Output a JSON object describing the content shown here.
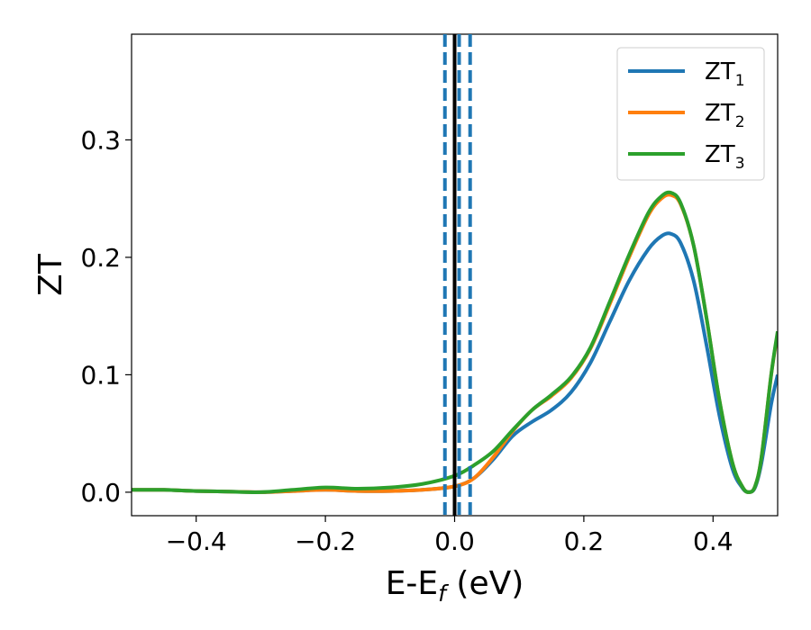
{
  "chart_data": {
    "type": "line",
    "xlabel": "E-E",
    "xlabel_sub": "f",
    "xlabel_unit": " (eV)",
    "ylabel": "ZT",
    "xlim": [
      -0.5,
      0.5
    ],
    "ylim": [
      -0.02,
      0.39
    ],
    "xticks": [
      -0.4,
      -0.2,
      0.0,
      0.2,
      0.4
    ],
    "xtick_labels": [
      "−0.4",
      "−0.2",
      "0.0",
      "0.2",
      "0.4"
    ],
    "yticks": [
      0.0,
      0.1,
      0.2,
      0.3
    ],
    "ytick_labels": [
      "0.0",
      "0.1",
      "0.2",
      "0.3"
    ],
    "grid": false,
    "legend_position": "top-right",
    "vertical_lines": [
      {
        "x": 0.0,
        "style": "solid",
        "color": "#000000"
      },
      {
        "x": -0.015,
        "style": "dashed",
        "color": "#1f77b4"
      },
      {
        "x": 0.007,
        "style": "dashed",
        "color": "#1f77b4"
      },
      {
        "x": 0.024,
        "style": "dashed",
        "color": "#1f77b4"
      }
    ],
    "series": [
      {
        "name": "ZT",
        "name_sub": "1",
        "color": "#1f77b4",
        "x": [
          -0.5,
          -0.45,
          -0.4,
          -0.35,
          -0.3,
          -0.25,
          -0.2,
          -0.15,
          -0.1,
          -0.05,
          0.0,
          0.03,
          0.06,
          0.09,
          0.12,
          0.15,
          0.18,
          0.21,
          0.24,
          0.27,
          0.3,
          0.32,
          0.335,
          0.35,
          0.37,
          0.39,
          0.41,
          0.43,
          0.445,
          0.455,
          0.465,
          0.475,
          0.49,
          0.5
        ],
        "y": [
          0.002,
          0.002,
          0.001,
          0.0005,
          0.0,
          0.001,
          0.002,
          0.001,
          0.001,
          0.002,
          0.005,
          0.012,
          0.028,
          0.048,
          0.06,
          0.07,
          0.085,
          0.11,
          0.145,
          0.18,
          0.207,
          0.218,
          0.22,
          0.212,
          0.18,
          0.125,
          0.065,
          0.02,
          0.004,
          0.0,
          0.004,
          0.025,
          0.075,
          0.1
        ]
      },
      {
        "name": "ZT",
        "name_sub": "2",
        "color": "#ff7f0e",
        "x": [
          -0.5,
          -0.45,
          -0.4,
          -0.35,
          -0.3,
          -0.25,
          -0.2,
          -0.15,
          -0.1,
          -0.05,
          0.0,
          0.03,
          0.06,
          0.09,
          0.12,
          0.15,
          0.18,
          0.21,
          0.24,
          0.27,
          0.3,
          0.32,
          0.335,
          0.35,
          0.37,
          0.39,
          0.41,
          0.43,
          0.445,
          0.455,
          0.465,
          0.475,
          0.49,
          0.5
        ],
        "y": [
          0.002,
          0.002,
          0.001,
          0.0005,
          0.0,
          0.001,
          0.002,
          0.001,
          0.001,
          0.002,
          0.005,
          0.012,
          0.03,
          0.052,
          0.07,
          0.082,
          0.097,
          0.122,
          0.16,
          0.2,
          0.236,
          0.25,
          0.253,
          0.245,
          0.21,
          0.148,
          0.078,
          0.025,
          0.005,
          0.0,
          0.005,
          0.03,
          0.1,
          0.135
        ]
      },
      {
        "name": "ZT",
        "name_sub": "3",
        "color": "#2ca02c",
        "x": [
          -0.5,
          -0.45,
          -0.4,
          -0.35,
          -0.3,
          -0.25,
          -0.2,
          -0.15,
          -0.1,
          -0.05,
          0.0,
          0.03,
          0.06,
          0.09,
          0.12,
          0.15,
          0.18,
          0.21,
          0.24,
          0.27,
          0.3,
          0.32,
          0.335,
          0.35,
          0.37,
          0.39,
          0.41,
          0.43,
          0.445,
          0.455,
          0.465,
          0.475,
          0.49,
          0.5
        ],
        "y": [
          0.002,
          0.002,
          0.001,
          0.0005,
          0.0,
          0.002,
          0.004,
          0.003,
          0.004,
          0.007,
          0.014,
          0.023,
          0.035,
          0.053,
          0.07,
          0.083,
          0.098,
          0.123,
          0.162,
          0.202,
          0.238,
          0.252,
          0.255,
          0.246,
          0.21,
          0.148,
          0.078,
          0.025,
          0.005,
          0.0,
          0.005,
          0.03,
          0.1,
          0.137
        ]
      }
    ]
  }
}
